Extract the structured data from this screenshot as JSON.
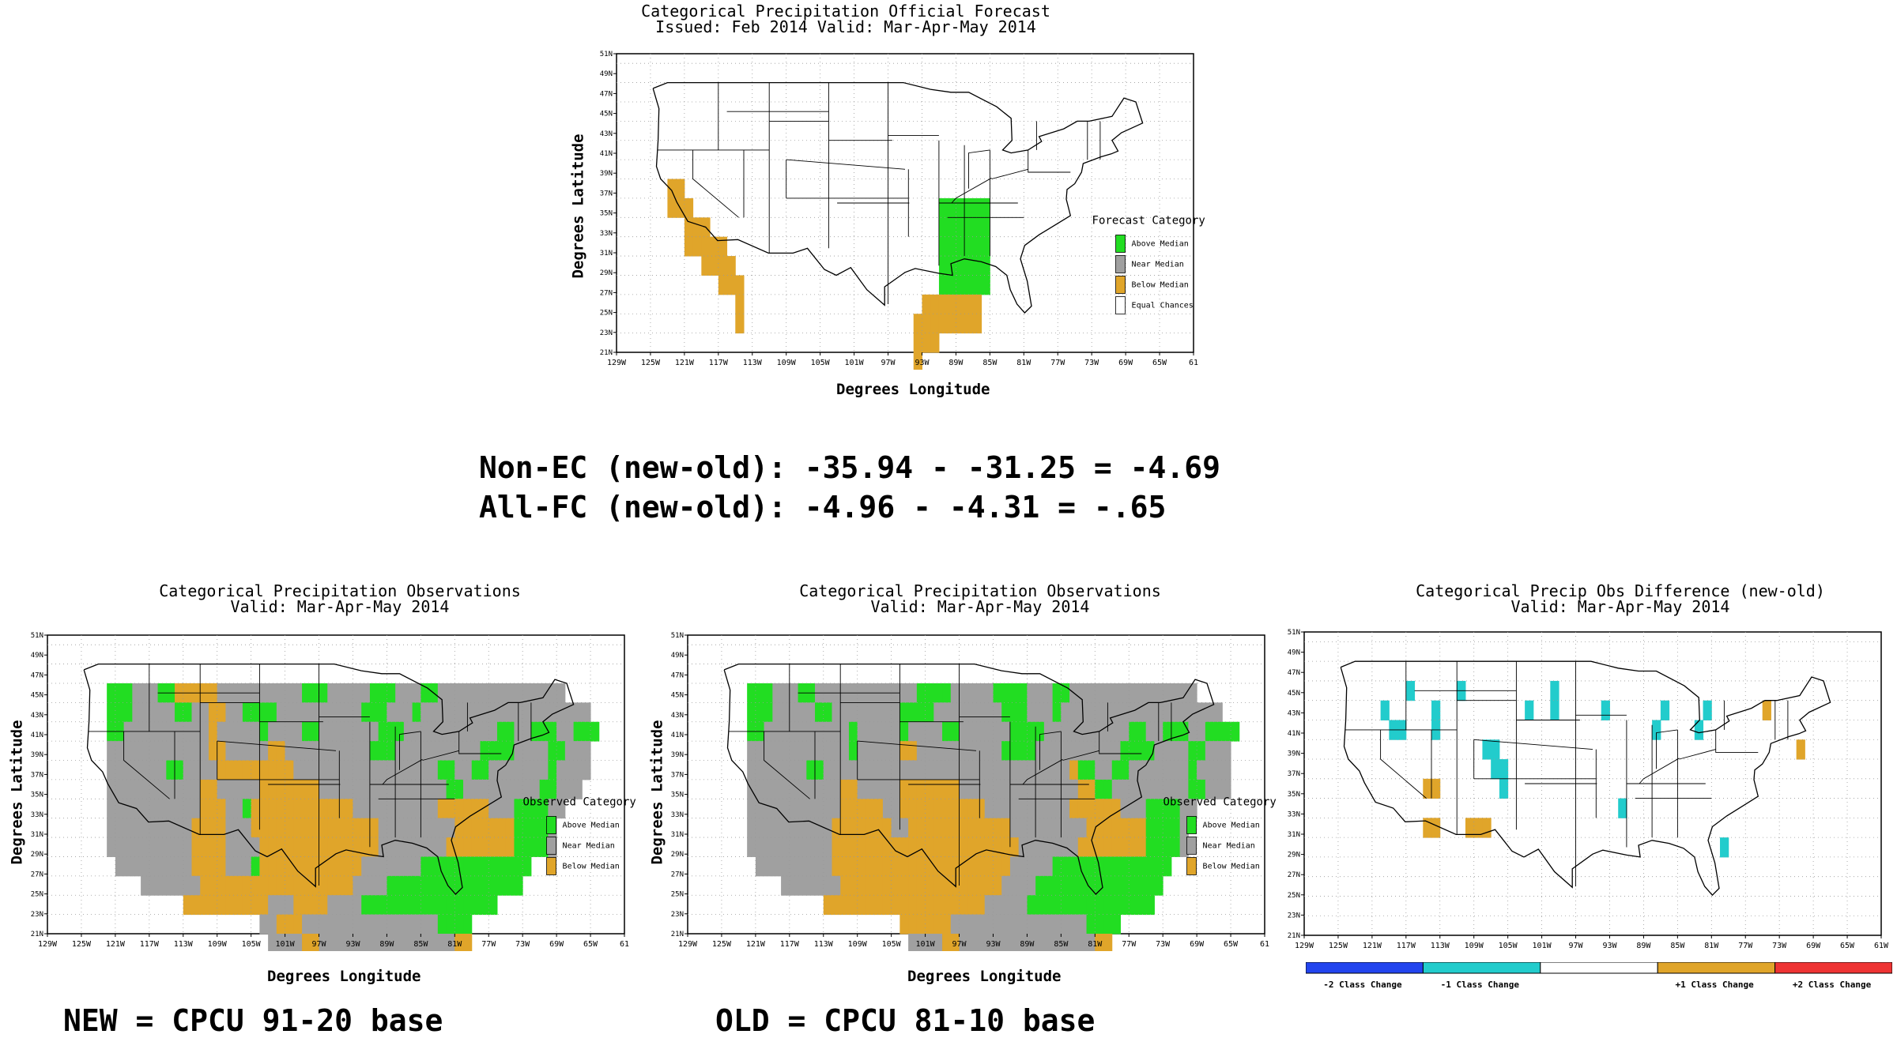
{
  "forecast_map": {
    "title_line1": "Categorical Precipitation Official Forecast",
    "title_line2": "Issued: Feb 2014 Valid: Mar-Apr-May 2014",
    "xlabel": "Degrees Longitude",
    "ylabel": "Degrees Latitude",
    "legend": {
      "title": "Forecast Category",
      "items": [
        {
          "label": "Above Median",
          "color": "#22dd22"
        },
        {
          "label": "Near Median",
          "color": "#a0a0a0"
        },
        {
          "label": "Below Median",
          "color": "#e0a52a"
        },
        {
          "label": "Equal Chances",
          "color": "#ffffff"
        }
      ]
    }
  },
  "stats": {
    "line1": "Non-EC (new-old): -35.94 - -31.25 = -4.69",
    "line2": "All-FC (new-old): -4.96 - -4.31 = -.65"
  },
  "obs_new_map": {
    "title_line1": "Categorical Precipitation Observations",
    "title_line2": "Valid: Mar-Apr-May 2014",
    "xlabel": "Degrees Longitude",
    "ylabel": "Degrees Latitude",
    "legend": {
      "title": "Observed Category",
      "items": [
        {
          "label": "Above Median",
          "color": "#22dd22"
        },
        {
          "label": "Near Median",
          "color": "#a0a0a0"
        },
        {
          "label": "Below Median",
          "color": "#e0a52a"
        }
      ]
    },
    "footer": "NEW = CPCU 91-20 base"
  },
  "obs_old_map": {
    "title_line1": "Categorical Precipitation Observations",
    "title_line2": "Valid: Mar-Apr-May 2014",
    "xlabel": "Degrees Longitude",
    "ylabel": "Degrees Latitude",
    "legend": {
      "title": "Observed Category",
      "items": [
        {
          "label": "Above Median",
          "color": "#22dd22"
        },
        {
          "label": "Near Median",
          "color": "#a0a0a0"
        },
        {
          "label": "Below Median",
          "color": "#e0a52a"
        }
      ]
    },
    "footer": "OLD = CPCU 81-10 base"
  },
  "diff_map": {
    "title_line1": "Categorical Precip Obs Difference (new-old)",
    "title_line2": "Valid: Mar-Apr-May 2014",
    "colorbar": [
      {
        "label": "-2 Class Change",
        "color": "#2244ee"
      },
      {
        "label": "-1 Class Change",
        "color": "#22cccc"
      },
      {
        "label": "",
        "color": "#ffffff"
      },
      {
        "label": "+1 Class Change",
        "color": "#e0a52a"
      },
      {
        "label": "+2 Class Change",
        "color": "#ee3333"
      }
    ]
  },
  "axes": {
    "lon_ticks": [
      "129W",
      "125W",
      "121W",
      "117W",
      "113W",
      "109W",
      "105W",
      "101W",
      "97W",
      "93W",
      "89W",
      "85W",
      "81W",
      "77W",
      "73W",
      "69W",
      "65W",
      "61"
    ],
    "lon_ticks_diff": [
      "129W",
      "125W",
      "121W",
      "117W",
      "113W",
      "109W",
      "105W",
      "101W",
      "97W",
      "93W",
      "89W",
      "85W",
      "81W",
      "77W",
      "73W",
      "69W",
      "65W",
      "61W"
    ],
    "lat_ticks": [
      "51N",
      "49N",
      "47N",
      "45N",
      "43N",
      "41N",
      "39N",
      "37N",
      "35N",
      "33N",
      "31N",
      "29N",
      "27N",
      "25N",
      "23N",
      "21N"
    ]
  },
  "grids": {
    "forecast": [
      "..........................................",
      "..........................................",
      "..........................................",
      "..........................................",
      "..........................................",
      "..........................................",
      "..BB......................................",
      "..BBB.............................GGGGGG..",
      "....BBB...........................GGGGGG..",
      "....BBBBB.........................GGGGGG..",
      "......BBBB........................GGGGGG..",
      "........BBB.......................GGGGGG..",
      "..........B.....................BBBBBBB...",
      "..........B....................BBBBBBBB...",
      "...............................BBB........",
      "...............................B..........",
      ".........................................."
    ],
    "obs_new": [
      "................................................................",
      "...................................................................",
      "...GGGNNNGGBBBBBNNNNNNNNNNGGGNNNNNGGGNNNGGNNNNNNNNNNNNNNN..........",
      "...GGGNNNNNGGNNBBNNGGGGNNNNNNNNNNGGGNNNGNNNNNNNNNNNNNNNNNNNN........",
      "...GGNNNNNNNNNNBNNNNNGNNNNGGNNNNNNNGGGNNNNNNNNNNNGGNNGGGNNGGG.......",
      "...NNNNNNNNNNNNBBNNNNNBBNNNNNNNNNNGGGNNNNNNNNNNGGGGNNNNGGNNN........",
      "...NNNNNNNGGNNNNBBBBBBBBBNNNNNNNNNNNNNNNNNGGNNGGNNNNNNNGNNNN........",
      "...NNNNNNNNNNNBBNNNNNBBBBBBBNNNNNNNNNNNNNNNGGNNNNNNNNNGGNNN.........",
      "...NNNNNNNNNNNBBBNNGBBBBBBBBBBBBNNNNNNNNNNBBBBBBNNNGGGGNN..........",
      "...NNNNNNNNNNBBBBNNNBBBBBBBBBBBBBBBNNNNNNNNNBBBBBBBGGGGN...........",
      "...NNNNNNNNNNBBBBNNNNBBBBBBBBBBBBBBNNNNNNNNBBBBBBBBGGGGN...........",
      "....NNNNNNNNNBBBBNNNGBBBBBBBBBBBBNNNNNNNGGGGGGGGGGGGG..............",
      ".......NNNNNNNBBBBBBBBBBBBBBBBBBNNNNGGGGGGGGGGGGGGGG...............",
      "............BBBBBBBBBBNNNBBBBNNNNGGGGGGGGGGGGGGGG..................",
      ".....................NNBBBNNNNNNNNNNNNNNNNGGGG......................",
      "......................NNNNBBNNNNNNNNNNNNNNNNBB......................",
      "..........................NNNN...........NNBB......................",
      ".............................NN..........NN........................"
    ],
    "obs_old": [
      "................................................................",
      "...................................................................",
      "...GGGNNNGGNNNNNNNNNNNNGGGGNNNNNGGGGNNNGGNNNNNNNNNNNNNNN...........",
      "...GGGNNNNNGGNNNNNNNNGGGGNNNNNNNNGGGNNNGNNNNNNNNNNNNNNNNNNN.........",
      "...GGNNNNNNNNNNGNNNNNGNNNNGGNNNNNNGGGGNNNNNNNNNNGGNNGGGNNGGGG.......",
      "...NNNNNNNNNNNNGNNNNNBBNNNNNNNNNNGGGGNNNNNNNNNNGGGGNNNNGGNNN........",
      "...NNNNNNNGGNNNNNNNNNNNNNNNNNNNNNNNNNNNNNBGGNNGGNNNNNNNGNNNN........",
      "...NNNNNNNNNNNBBNNNNNBBBBBBBNNNNNNNNNNNNNNBBGGNNNNNNNNNGGNNN.........",
      "...NNNNNNNNNNNBBBBBNNBBBBBBBBBBNNNNNNNNNNBBBBBBNNNGGGGNN............",
      "...NNNNNNNNNNBBBBBBBNNBBBBBBBBBBBBNNNNNNNNNBBBBBBBGGGGN.............",
      "...NNNNNNNNNNBBBBBBBBBBBBBBBBBBBBBBNNNNNNNBBBBBBBBGGGGN.............",
      "....NNNNNNNNNBBBBBBBBBBBBBBBBBBBBBNNNNNGGGGGGGGGGGGGG..............",
      ".......NNNNNNNBBBBBBBBBBBBBBBBBBBNNNNGGGGGGGGGGGGGGG...............",
      "............BBBBBBBBBBBBBBBBBBBNNNNNGGGGGGGGGGGGGGG................",
      ".....................BBBBBBNNNNNNNNNNNNNNNNGGGG.....................",
      "......................NNNNBBNNNNNNNNNNNNNNNNBB......................",
      "..........................NNNN...........NNBB......................",
      ".............................NN..........NN........................"
    ],
    "diff": [
      "..............................................................",
      "...............................................................",
      "........C.....C..........C.........................................",
      ".....C.....C..........C..C.....C......C....C......B................",
      "......CC...C.........................C....C......................",
      ".................CC...................................B..........",
      "..................CC..............................................",
      "..........BB.......C.............................................",
      ".................................C................................",
      "..........BB...BBB................................................",
      ".............................................C....................",
      ".................................................................."
    ]
  }
}
